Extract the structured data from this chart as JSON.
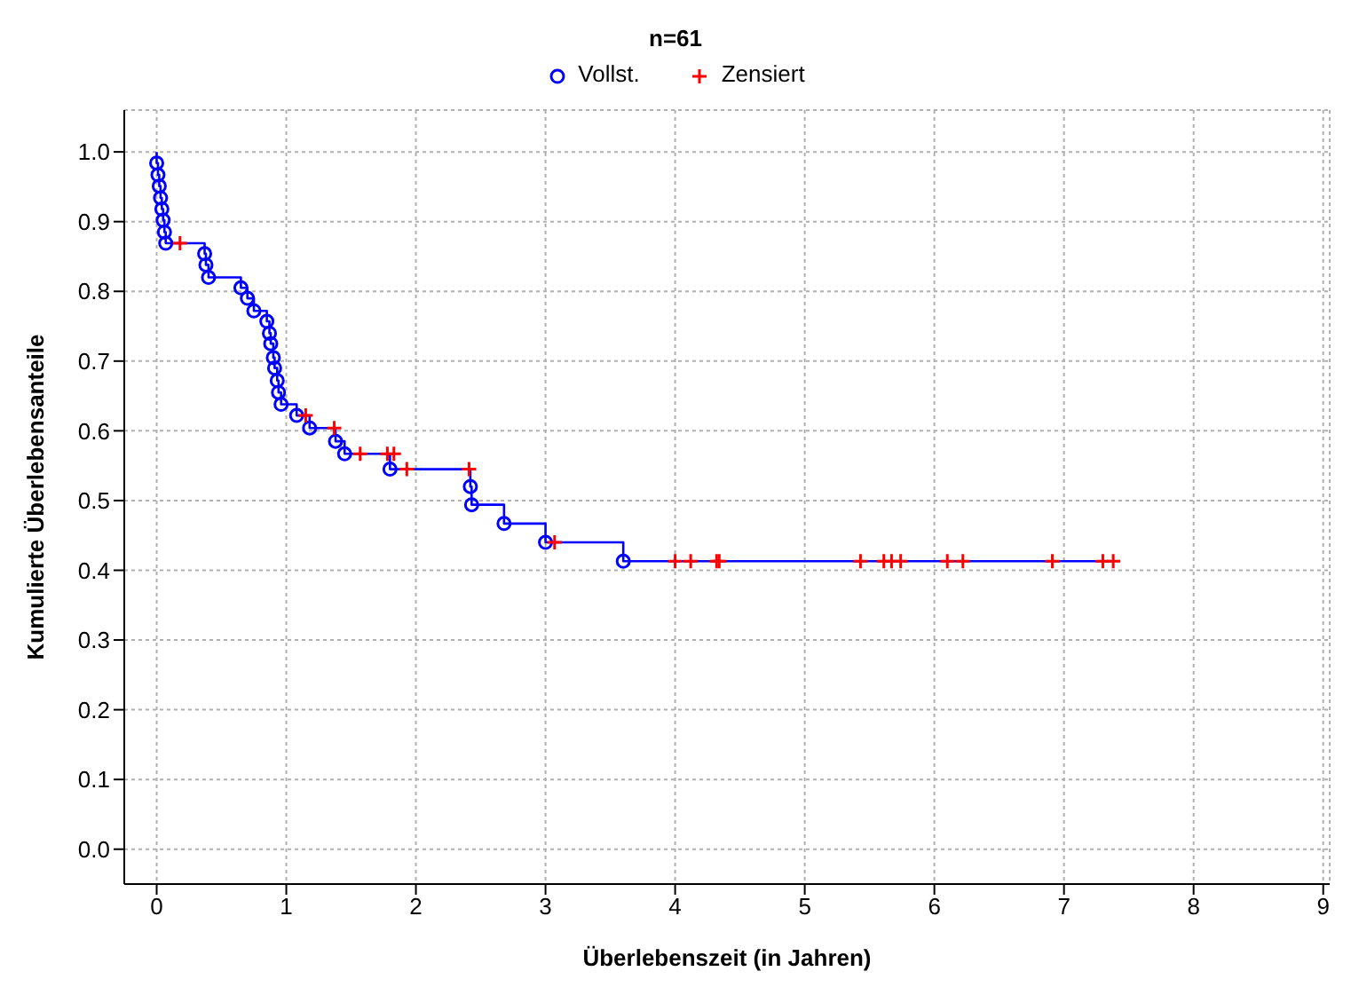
{
  "chart_data": {
    "type": "scatter",
    "title": "n=61",
    "xlabel": "Überlebenszeit (in Jahren)",
    "ylabel": "Kumulierte Überlebensanteile",
    "xlim": [
      -0.25,
      9.05
    ],
    "xticks": [
      0,
      1,
      2,
      3,
      4,
      5,
      6,
      7,
      8,
      9
    ],
    "ylim": [
      -0.05,
      1.06
    ],
    "yticks": [
      {
        "value": 0,
        "label": "0.0"
      },
      {
        "value": 0.1,
        "label": "0.1"
      },
      {
        "value": 0.2,
        "label": "0.2"
      },
      {
        "value": 0.3,
        "label": "0.3"
      },
      {
        "value": 0.4,
        "label": "0.4"
      },
      {
        "value": 0.5,
        "label": "0.5"
      },
      {
        "value": 0.6,
        "label": "0.6"
      },
      {
        "value": 0.7,
        "label": "0.7"
      },
      {
        "value": 0.8,
        "label": "0.8"
      },
      {
        "value": 0.9,
        "label": "0.9"
      },
      {
        "value": 1,
        "label": "1.0"
      }
    ],
    "grid": true,
    "legend": "top",
    "series": [
      {
        "type": "step",
        "color": "#0000ff",
        "x": [
          0,
          0,
          0.01,
          0.02,
          0.03,
          0.04,
          0.05,
          0.06,
          0.07,
          0.37,
          0.38,
          0.4,
          0.65,
          0.7,
          0.75,
          0.85,
          0.87,
          0.88,
          0.9,
          0.91,
          0.93,
          0.94,
          0.96,
          1.08,
          1.18,
          1.38,
          1.45,
          1.8,
          2.42,
          2.43,
          2.68,
          3.0,
          3.6,
          7.38
        ],
        "values": [
          1,
          0.984,
          0.967,
          0.951,
          0.934,
          0.918,
          0.902,
          0.885,
          0.869,
          0.854,
          0.838,
          0.82,
          0.805,
          0.79,
          0.772,
          0.757,
          0.74,
          0.725,
          0.705,
          0.69,
          0.672,
          0.655,
          0.638,
          0.622,
          0.604,
          0.585,
          0.567,
          0.545,
          0.52,
          0.494,
          0.467,
          0.44,
          0.413,
          0.413
        ]
      },
      {
        "name": "Vollst.",
        "color": "#0000ff",
        "marker": "circle",
        "x": [
          0,
          0.01,
          0.02,
          0.03,
          0.04,
          0.05,
          0.06,
          0.07,
          0.37,
          0.38,
          0.4,
          0.65,
          0.7,
          0.75,
          0.85,
          0.87,
          0.88,
          0.9,
          0.91,
          0.93,
          0.94,
          0.96,
          1.08,
          1.18,
          1.38,
          1.45,
          1.8,
          2.42,
          2.43,
          2.68,
          3.0,
          3.6
        ],
        "values": [
          0.984,
          0.967,
          0.951,
          0.934,
          0.918,
          0.902,
          0.885,
          0.869,
          0.854,
          0.838,
          0.82,
          0.805,
          0.79,
          0.772,
          0.757,
          0.74,
          0.725,
          0.705,
          0.69,
          0.672,
          0.655,
          0.638,
          0.622,
          0.604,
          0.585,
          0.567,
          0.545,
          0.52,
          0.494,
          0.467,
          0.44,
          0.413
        ]
      },
      {
        "name": "Zensiert",
        "color": "#ff0000",
        "marker": "cross",
        "x": [
          0.18,
          1.15,
          1.37,
          1.57,
          1.78,
          1.83,
          1.93,
          2.41,
          3.07,
          4.0,
          4.12,
          4.32,
          4.34,
          5.43,
          5.61,
          5.67,
          5.74,
          6.1,
          6.22,
          6.91,
          7.3,
          7.38
        ],
        "values": [
          0.869,
          0.622,
          0.604,
          0.567,
          0.567,
          0.567,
          0.545,
          0.545,
          0.44,
          0.413,
          0.413,
          0.413,
          0.413,
          0.413,
          0.413,
          0.413,
          0.413,
          0.413,
          0.413,
          0.413,
          0.413,
          0.413
        ]
      }
    ]
  }
}
